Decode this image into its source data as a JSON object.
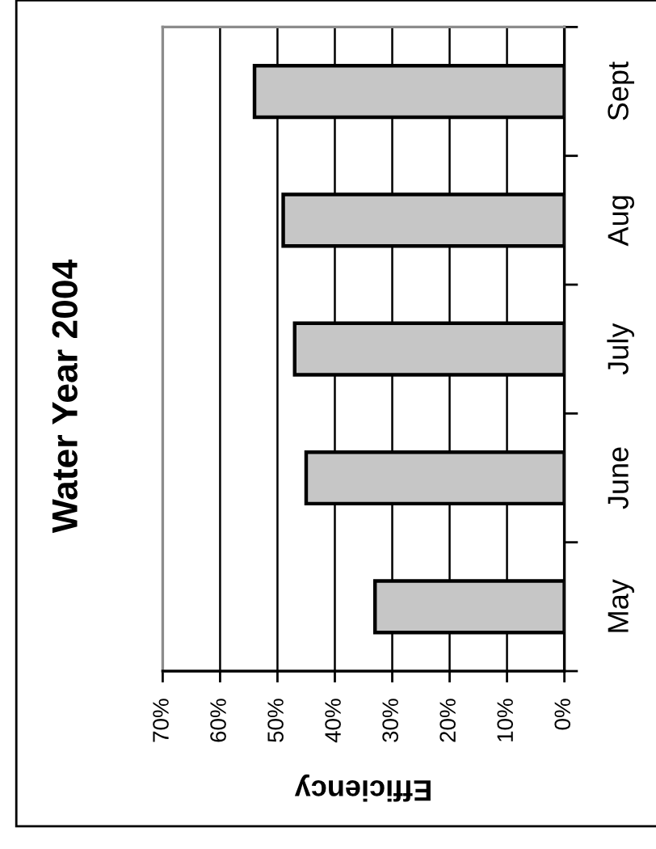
{
  "chart_data": {
    "type": "bar",
    "title": "Water Year 2004",
    "xlabel": "Efficiency",
    "orientation": "horizontal",
    "categories": [
      "Sept",
      "Aug",
      "July",
      "June",
      "May"
    ],
    "values": [
      54,
      49,
      47,
      45,
      33
    ],
    "color": "#c6c6c6",
    "xlim": [
      70,
      0
    ],
    "xticks": [
      {
        "value": 70,
        "label": "70%"
      },
      {
        "value": 60,
        "label": "60%"
      },
      {
        "value": 50,
        "label": "50%"
      },
      {
        "value": 40,
        "label": "40%"
      },
      {
        "value": 30,
        "label": "30%"
      },
      {
        "value": 20,
        "label": "20%"
      },
      {
        "value": 10,
        "label": "10%"
      },
      {
        "value": 0,
        "label": "0%"
      }
    ],
    "grid": "x"
  }
}
